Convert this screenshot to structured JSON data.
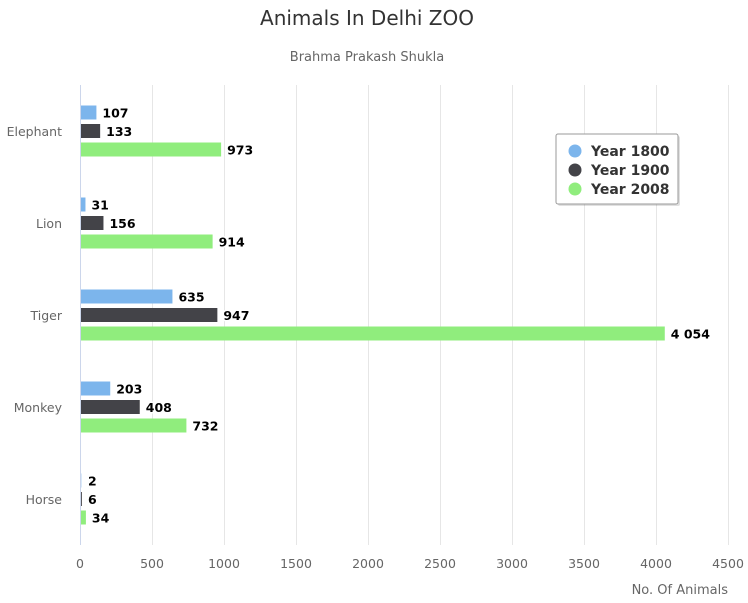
{
  "chart_data": {
    "type": "bar",
    "orientation": "horizontal",
    "title": "Animals In Delhi ZOO",
    "subtitle": "Brahma Prakash Shukla",
    "xlabel": "No. Of Animals",
    "ylabel": "",
    "categories": [
      "Elephant",
      "Lion",
      "Tiger",
      "Monkey",
      "Horse"
    ],
    "series": [
      {
        "name": "Year 1800",
        "color": "#7cb5ec",
        "values": [
          107,
          31,
          635,
          203,
          2
        ],
        "labels": [
          "107",
          "31",
          "635",
          "203",
          "2"
        ]
      },
      {
        "name": "Year 1900",
        "color": "#434348",
        "values": [
          133,
          156,
          947,
          408,
          6
        ],
        "labels": [
          "133",
          "156",
          "947",
          "408",
          "6"
        ]
      },
      {
        "name": "Year 2008",
        "color": "#90ed7d",
        "values": [
          973,
          914,
          4054,
          732,
          34
        ],
        "labels": [
          "973",
          "914",
          "4 054",
          "732",
          "34"
        ]
      }
    ],
    "xlim": [
      0,
      4500
    ],
    "ticks": [
      "0",
      "500",
      "1000",
      "1500",
      "2000",
      "2500",
      "3000",
      "3500",
      "4000",
      "4500"
    ],
    "grid": true,
    "legend_position": "top-right"
  }
}
